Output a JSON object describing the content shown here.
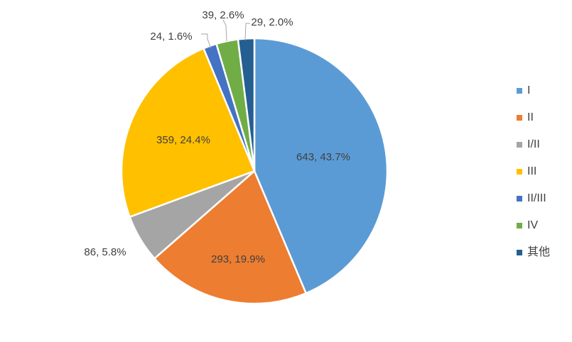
{
  "chart_data": {
    "type": "pie",
    "start_angle_deg": 0,
    "direction": "clockwise",
    "slices": [
      {
        "name": "I",
        "value": 643,
        "percent": "43.7%",
        "color": "#5B9BD5",
        "label": "643, 43.7%"
      },
      {
        "name": "II",
        "value": 293,
        "percent": "19.9%",
        "color": "#ED7D31",
        "label": "293, 19.9%"
      },
      {
        "name": "I/II",
        "value": 86,
        "percent": "5.8%",
        "color": "#A5A5A5",
        "label": "86, 5.8%"
      },
      {
        "name": "III",
        "value": 359,
        "percent": "24.4%",
        "color": "#FFC000",
        "label": "359, 24.4%"
      },
      {
        "name": "II/III",
        "value": 24,
        "percent": "1.6%",
        "color": "#4472C4",
        "label": "24, 1.6%"
      },
      {
        "name": "IV",
        "value": 39,
        "percent": "2.6%",
        "color": "#70AD47",
        "label": "39, 2.6%"
      },
      {
        "name": "其他",
        "value": 29,
        "percent": "2.0%",
        "color": "#255E91",
        "label": "29, 2.0%"
      }
    ],
    "legend_position": "right",
    "data_labels": "value, percent",
    "label_color": "#404040"
  }
}
